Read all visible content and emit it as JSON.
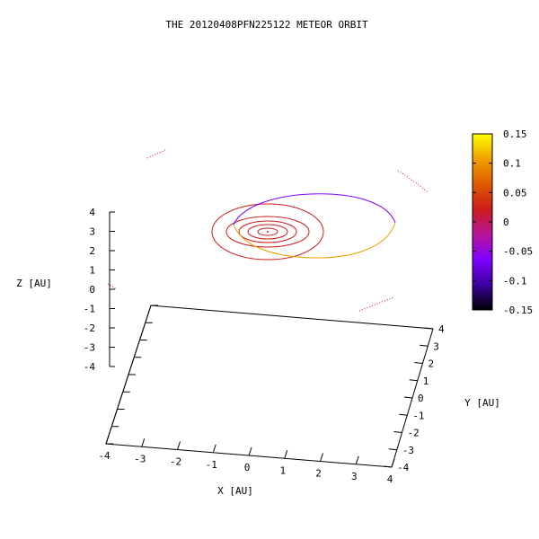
{
  "chart_data": {
    "type": "line",
    "title": "THE 20120408PFN225122 METEOR ORBIT",
    "xlabel": "X [AU]",
    "ylabel": "Y [AU]",
    "zlabel": "Z [AU]",
    "xlim": [
      -4,
      4
    ],
    "ylim": [
      -4,
      4
    ],
    "zlim": [
      -4,
      4
    ],
    "x_ticks": [
      "-4",
      "-3",
      "-2",
      "-1",
      "0",
      "1",
      "2",
      "3",
      "4"
    ],
    "y_ticks": [
      "-4",
      "-3",
      "-2",
      "-1",
      "0",
      "1",
      "2",
      "3",
      "4"
    ],
    "z_ticks": [
      "4",
      "3",
      "2",
      "1",
      "0",
      "-1",
      "-2",
      "-3",
      "-4"
    ],
    "colorbar": {
      "range": [
        -0.15,
        0.15
      ],
      "ticks": [
        "0.15",
        "0.1",
        "0.05",
        "0",
        "-0.05",
        "-0.1",
        "-0.15"
      ],
      "colors": [
        "#000000",
        "#3c00a0",
        "#8000ff",
        "#b8149a",
        "#cc1a1a",
        "#e05a00",
        "#f0a000",
        "#ffff00"
      ]
    },
    "series": [
      {
        "kind": "planet-orbit",
        "radius": 0.39,
        "color": "#cc1a1a"
      },
      {
        "kind": "planet-orbit",
        "radius": 0.72,
        "color": "#cc1a1a"
      },
      {
        "kind": "planet-orbit",
        "radius": 1.0,
        "color": "#cc1a1a"
      },
      {
        "kind": "planet-orbit",
        "radius": 1.52,
        "color": "#cc1a1a"
      },
      {
        "kind": "planet-orbit",
        "radius": 3.0,
        "color": "#cc1a1a"
      },
      {
        "kind": "meteor-orbit",
        "color_above": "#8000ff",
        "color_below": "#f0a000"
      }
    ],
    "grid": false,
    "legend": "none"
  }
}
